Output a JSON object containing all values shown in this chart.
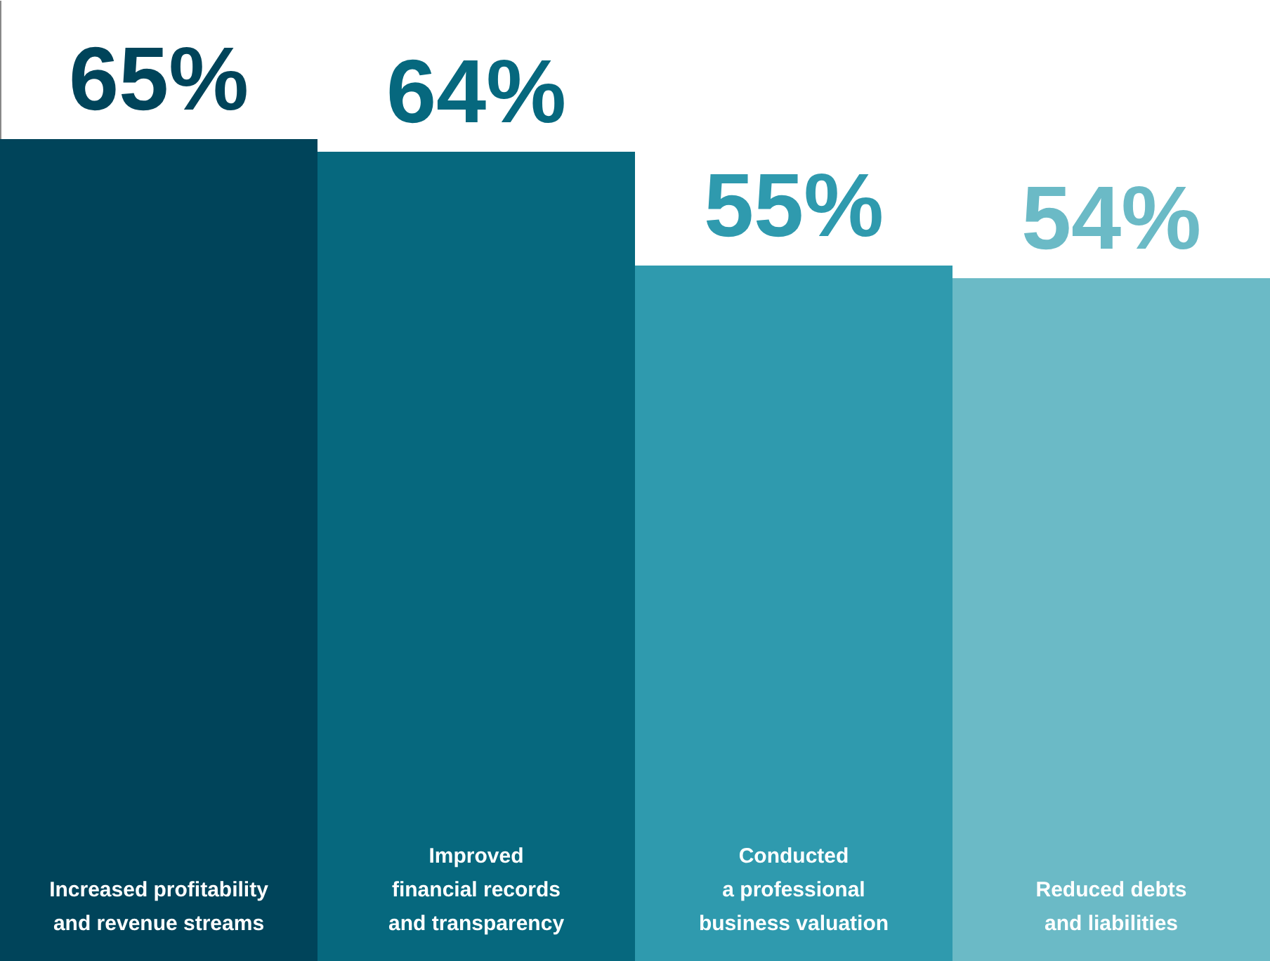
{
  "chart_data": {
    "type": "bar",
    "categories": [
      "Increased profitability\nand revenue streams",
      "Improved\nfinancial records\nand transparency",
      "Conducted\na professional\nbusiness valuation",
      "Reduced debts\nand liabilities"
    ],
    "values": [
      65,
      64,
      55,
      54
    ],
    "colors": [
      "#00445a",
      "#06687e",
      "#2f9aae",
      "#6bbac6"
    ],
    "value_labels": [
      "65%",
      "64%",
      "55%",
      "54%"
    ],
    "ylim": [
      0,
      76
    ],
    "grid": false
  }
}
